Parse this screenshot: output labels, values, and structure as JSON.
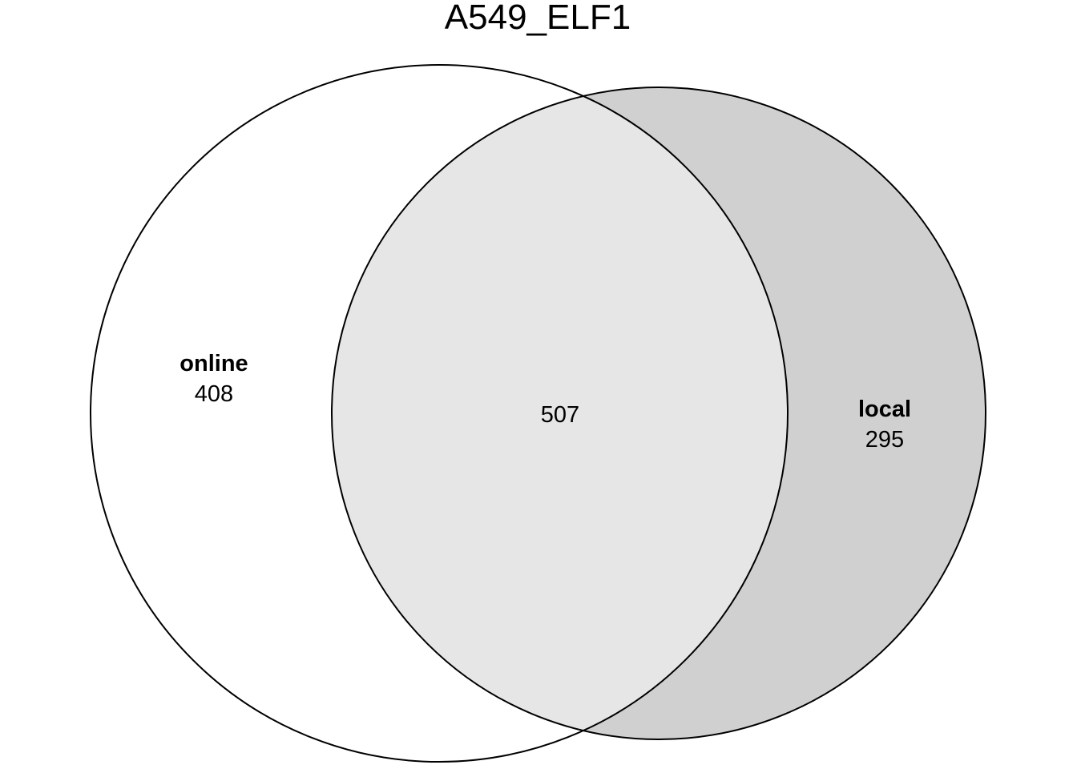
{
  "title": "A549_ELF1",
  "sets": [
    {
      "name": "online",
      "only_count": "408",
      "fill": "#ffffff"
    },
    {
      "name": "local",
      "only_count": "295",
      "fill": "#d0d0d0"
    }
  ],
  "intersection": {
    "count": "507",
    "fill": "#e6e6e6"
  },
  "stroke_color": "#000000"
}
